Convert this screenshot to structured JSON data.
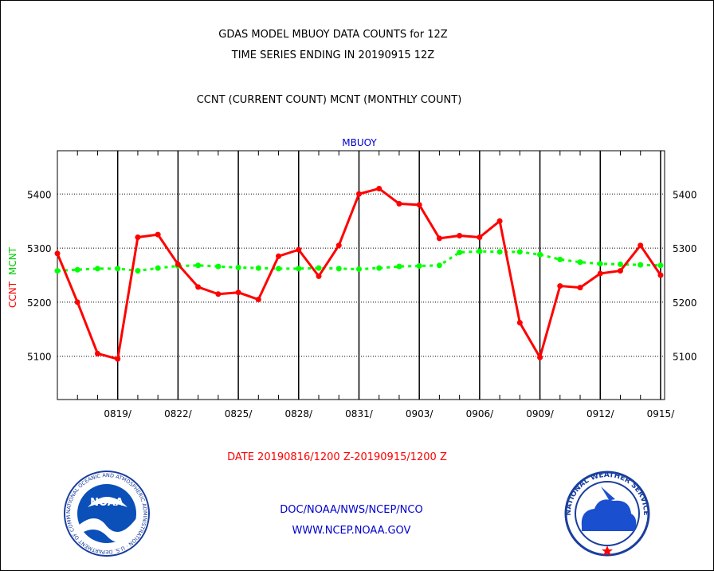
{
  "header": {
    "title": "GDAS MODEL MBUOY DATA COUNTS for 12Z",
    "subtitle": "TIME SERIES ENDING IN 20190915 12Z",
    "legend_line": "CCNT (CURRENT COUNT) MCNT (MONTHLY COUNT)",
    "panel_label": "MBUOY"
  },
  "footer": {
    "date_range": "DATE 20190816/1200 Z-20190915/1200 Z",
    "org_line": "DOC/NOAA/NWS/NCEP/NCO",
    "url": "WWW.NCEP.NOAA.GOV"
  },
  "logos": {
    "noaa_text": "NOAA",
    "noaa_ring": "NATIONAL OCEANIC AND ATMOSPHERIC ADMINISTRATION · U.S. DEPARTMENT OF COMMERCE",
    "nws_ring": "NATIONAL WEATHER SERVICE"
  },
  "colors": {
    "ccnt": "#ff0000",
    "mcnt": "#00ff00",
    "axis": "#000000",
    "blue_text": "#0000cc"
  },
  "chart_data": {
    "type": "line",
    "title": "GDAS MODEL MBUOY DATA COUNTS for 12Z",
    "ylabel_ccnt": "CCNT",
    "ylabel_mcnt": "MCNT",
    "ylim": [
      5020,
      5480
    ],
    "yticks": [
      5100,
      5200,
      5300,
      5400
    ],
    "ytick_labels": [
      "5100",
      "5200",
      "5300",
      "5400"
    ],
    "xlim_days": [
      0,
      30.2
    ],
    "xticks_days": [
      3,
      6,
      9,
      12,
      15,
      18,
      21,
      24,
      27,
      30
    ],
    "xtick_labels": [
      "0819/",
      "0822/",
      "0825/",
      "0828/",
      "0831/",
      "0903/",
      "0906/",
      "0909/",
      "0912/",
      "0915/"
    ],
    "grid": true,
    "series": [
      {
        "name": "CCNT",
        "color": "#ff0000",
        "x": [
          0,
          1,
          2,
          3,
          4,
          5,
          6,
          7,
          8,
          9,
          10,
          11,
          12,
          13,
          14,
          15,
          16,
          17,
          18,
          19,
          20,
          21,
          22,
          23,
          24,
          25,
          26,
          27,
          28,
          29,
          30
        ],
        "values": [
          5290,
          5200,
          5105,
          5095,
          5320,
          5325,
          5270,
          5228,
          5215,
          5218,
          5205,
          5285,
          5297,
          5248,
          5305,
          5400,
          5410,
          5382,
          5380,
          5318,
          5323,
          5320,
          5350,
          5162,
          5098,
          5230,
          5227,
          5253,
          5258,
          5305,
          5250
        ]
      },
      {
        "name": "MCNT",
        "color": "#00ff00",
        "x": [
          0,
          1,
          2,
          3,
          4,
          5,
          6,
          7,
          8,
          9,
          10,
          11,
          12,
          13,
          14,
          15,
          16,
          17,
          18,
          19,
          20,
          21,
          22,
          23,
          24,
          25,
          26,
          27,
          28,
          29,
          30
        ],
        "values": [
          5258,
          5260,
          5262,
          5262,
          5258,
          5263,
          5267,
          5268,
          5266,
          5264,
          5263,
          5262,
          5262,
          5263,
          5262,
          5261,
          5263,
          5266,
          5267,
          5268,
          5292,
          5294,
          5293,
          5293,
          5288,
          5279,
          5274,
          5271,
          5270,
          5269,
          5268
        ]
      }
    ]
  }
}
